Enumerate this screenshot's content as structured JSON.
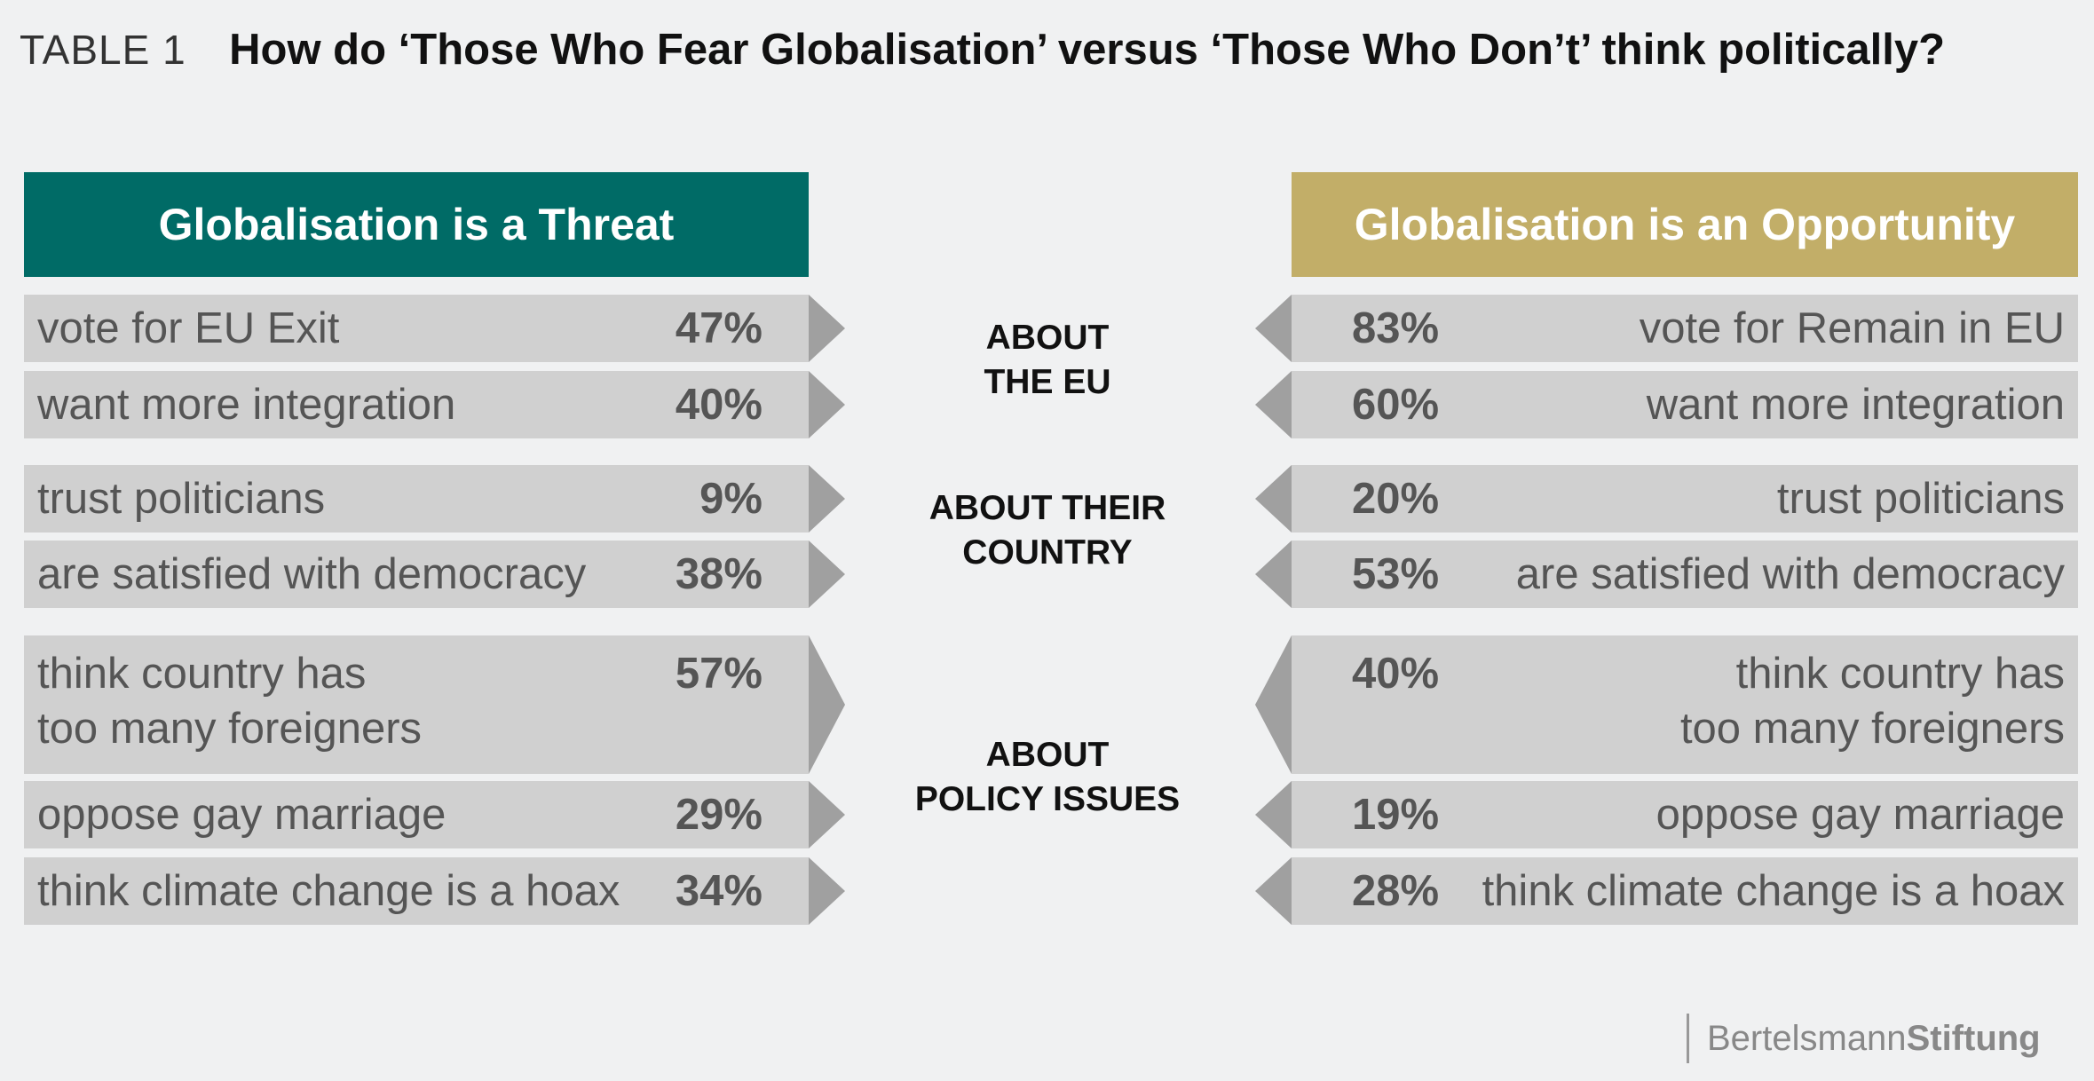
{
  "header": {
    "table_label": "TABLE 1",
    "title": "How do ‘Those Who Fear Globalisation’ versus ‘Those Who Don’t’ think politically?"
  },
  "colors": {
    "threat": "#006b66",
    "opportunity": "#c2ae68",
    "row_bg": "#d0d0d0",
    "arrow": "#a0a0a0"
  },
  "chart_data": {
    "type": "table",
    "columns": [
      "Globalisation is a Threat",
      "Globalisation is an Opportunity"
    ],
    "groups": [
      {
        "label": "ABOUT\nTHE EU",
        "rows": [
          {
            "threat_text": "vote for EU Exit",
            "threat_value": "47%",
            "opp_value": "83%",
            "opp_text": "vote for Remain in EU"
          },
          {
            "threat_text": "want more integration",
            "threat_value": "40%",
            "opp_value": "60%",
            "opp_text": "want more integration"
          }
        ]
      },
      {
        "label": "ABOUT THEIR\nCOUNTRY",
        "rows": [
          {
            "threat_text": "trust politicians",
            "threat_value": "9%",
            "opp_value": "20%",
            "opp_text": "trust politicians"
          },
          {
            "threat_text": "are satisfied with democracy",
            "threat_value": "38%",
            "opp_value": "53%",
            "opp_text": "are satisfied with democracy"
          }
        ]
      },
      {
        "label": "ABOUT\nPOLICY ISSUES",
        "rows": [
          {
            "threat_text": "think country has\ntoo many foreigners",
            "threat_value": "57%",
            "opp_value": "40%",
            "opp_text": "think country has\ntoo many foreigners"
          },
          {
            "threat_text": "oppose gay marriage",
            "threat_value": "29%",
            "opp_value": "19%",
            "opp_text": "oppose gay marriage"
          },
          {
            "threat_text": "think climate change is a hoax",
            "threat_value": "34%",
            "opp_value": "28%",
            "opp_text": "think climate change is a hoax"
          }
        ]
      }
    ]
  },
  "footer": {
    "logo_part1": "Bertelsmann",
    "logo_part2": "Stiftung"
  }
}
